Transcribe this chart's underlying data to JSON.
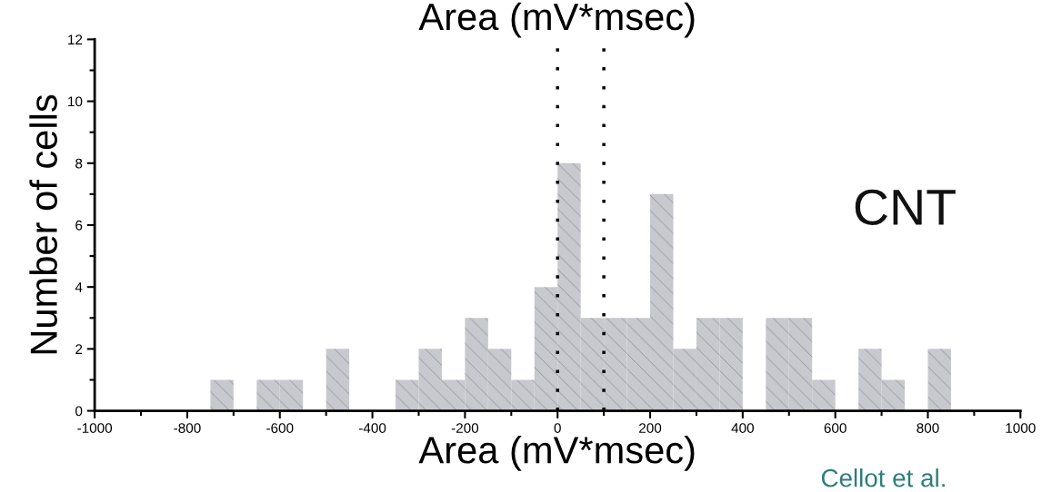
{
  "chart_data": {
    "type": "histogram",
    "title": "Area (mV*msec)",
    "xlabel": "Area (mV*msec)",
    "ylabel": "Number of cells",
    "bins": [
      -750,
      -700,
      -650,
      -600,
      -550,
      -500,
      -450,
      -400,
      -350,
      -300,
      -250,
      -200,
      -150,
      -100,
      -50,
      0,
      50,
      100,
      150,
      200,
      250,
      300,
      350,
      400,
      450,
      500,
      550,
      600,
      650,
      700,
      750,
      800,
      850
    ],
    "values": [
      1,
      0,
      1,
      1,
      0,
      2,
      0,
      0,
      1,
      2,
      1,
      3,
      2,
      1,
      4,
      8,
      3,
      3,
      3,
      7,
      2,
      3,
      3,
      0,
      3,
      3,
      1,
      0,
      2,
      1,
      0,
      2
    ],
    "color": "#c8c9ce",
    "xlim": [
      -1000,
      1000
    ],
    "xticks": [
      -1000,
      -800,
      -600,
      -400,
      -200,
      0,
      200,
      400,
      600,
      800,
      1000
    ],
    "ylim": [
      0,
      12
    ],
    "yticks": [
      0,
      2,
      4,
      6,
      8,
      10,
      12
    ],
    "ref_lines": [
      {
        "axis": "x",
        "value": 0,
        "line_style": "dotted",
        "color": "#000000"
      },
      {
        "axis": "x",
        "value": 100,
        "line_style": "dotted",
        "color": "#000000"
      }
    ],
    "annotations": [
      "CNT",
      "Cellot et al."
    ],
    "grid": false,
    "legend": false
  }
}
